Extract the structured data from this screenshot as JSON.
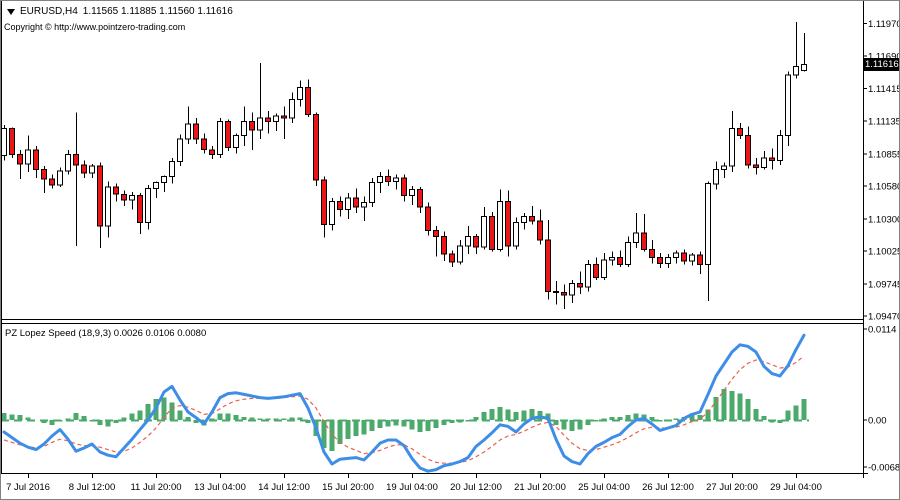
{
  "header": {
    "symbol": "EURUSD,H4",
    "ohlc": "1.11565 1.11885 1.11560 1.11616",
    "copyright": "Copyright © http://www.pointzero-trading.com"
  },
  "indicator": {
    "name": "PZ Lopez Speed (18,9,3)",
    "values_text": "0.0026 0.0106 0.0080",
    "histogram_value": 0.0026,
    "speed_value": 0.0106,
    "signal_value": 0.008
  },
  "colors": {
    "background": "#ffffff",
    "text": "#000000",
    "bull_body": "#ffffff",
    "bear_body": "#ed1515",
    "outline": "#000000",
    "speed_line": "#3e8de8",
    "signal_line": "#e8624a",
    "histogram": "#4ba96b",
    "zero_line": "#4ba96b",
    "price_box_bg": "#000000",
    "price_box_text": "#ffffff",
    "axis_line": "#000000"
  },
  "main_axis": {
    "current_price": "1.11616",
    "price_labels": [
      "1.11970",
      "1.11690",
      "1.11415",
      "1.11135",
      "1.10855",
      "1.10580",
      "1.10300",
      "1.10025",
      "1.09745",
      "1.09470"
    ]
  },
  "time_axis": {
    "labels": [
      "7 Jul 2016",
      "8 Jul 12:00",
      "11 Jul 20:00",
      "13 Jul 04:00",
      "14 Jul 12:00",
      "15 Jul 20:00",
      "19 Jul 04:00",
      "20 Jul 12:00",
      "21 Jul 20:00",
      "25 Jul 04:00",
      "26 Jul 12:00",
      "27 Jul 20:00",
      "29 Jul 04:00"
    ],
    "label_bars": [
      3,
      11,
      19,
      27,
      35,
      43,
      51,
      59,
      67,
      75,
      83,
      91,
      99
    ]
  },
  "chart_data": [
    {
      "type": "candlestick",
      "title": "EURUSD,H4",
      "symbol": "EURUSD",
      "timeframe": "H4",
      "current_bar": {
        "open": 1.11565,
        "high": 1.11885,
        "low": 1.1156,
        "close": 1.11616
      },
      "ylim": [
        1.09445,
        1.1216
      ],
      "grid": false,
      "bars": [
        [
          1.1084,
          1.111,
          1.108,
          1.1107
        ],
        [
          1.1107,
          1.1108,
          1.1082,
          1.1085
        ],
        [
          1.1085,
          1.1089,
          1.1064,
          1.1077
        ],
        [
          1.1077,
          1.1101,
          1.107,
          1.1089
        ],
        [
          1.1089,
          1.1092,
          1.1065,
          1.1072
        ],
        [
          1.1072,
          1.1075,
          1.1052,
          1.1064
        ],
        [
          1.1064,
          1.1068,
          1.1056,
          1.1059
        ],
        [
          1.1059,
          1.1074,
          1.1057,
          1.1071
        ],
        [
          1.1071,
          1.1089,
          1.1068,
          1.1085
        ],
        [
          1.1085,
          1.1121,
          1.1007,
          1.1076
        ],
        [
          1.1076,
          1.108,
          1.1065,
          1.1069
        ],
        [
          1.1069,
          1.1077,
          1.1065,
          1.1075
        ],
        [
          1.1075,
          1.1078,
          1.1005,
          1.1024
        ],
        [
          1.1024,
          1.1062,
          1.1014,
          1.1057
        ],
        [
          1.1057,
          1.106,
          1.1045,
          1.1051
        ],
        [
          1.1051,
          1.1054,
          1.1041,
          1.1046
        ],
        [
          1.1046,
          1.1053,
          1.1038,
          1.105
        ],
        [
          1.105,
          1.1052,
          1.1017,
          1.1027
        ],
        [
          1.1027,
          1.1059,
          1.1021,
          1.1056
        ],
        [
          1.1056,
          1.1062,
          1.1048,
          1.1061
        ],
        [
          1.1061,
          1.1067,
          1.1053,
          1.1066
        ],
        [
          1.1066,
          1.1082,
          1.106,
          1.1079
        ],
        [
          1.1079,
          1.1102,
          1.1075,
          1.1098
        ],
        [
          1.1098,
          1.1126,
          1.1094,
          1.1111
        ],
        [
          1.1111,
          1.1116,
          1.1094,
          1.1098
        ],
        [
          1.1098,
          1.1103,
          1.1086,
          1.1089
        ],
        [
          1.1089,
          1.1092,
          1.1081,
          1.1085
        ],
        [
          1.1085,
          1.1116,
          1.1082,
          1.1113
        ],
        [
          1.1113,
          1.1115,
          1.1088,
          1.1091
        ],
        [
          1.1091,
          1.1103,
          1.1086,
          1.1101
        ],
        [
          1.1101,
          1.1126,
          1.1092,
          1.1113
        ],
        [
          1.1113,
          1.1121,
          1.1089,
          1.1106
        ],
        [
          1.1106,
          1.1163,
          1.1098,
          1.1116
        ],
        [
          1.1116,
          1.1122,
          1.1103,
          1.1113
        ],
        [
          1.1113,
          1.112,
          1.1105,
          1.1118
        ],
        [
          1.1118,
          1.1126,
          1.1098,
          1.1116
        ],
        [
          1.1116,
          1.1138,
          1.1112,
          1.1132
        ],
        [
          1.1132,
          1.1148,
          1.1126,
          1.1142
        ],
        [
          1.1142,
          1.1149,
          1.1117,
          1.1119
        ],
        [
          1.1119,
          1.1121,
          1.1058,
          1.1063
        ],
        [
          1.1063,
          1.1066,
          1.1014,
          1.1025
        ],
        [
          1.1025,
          1.1048,
          1.102,
          1.1045
        ],
        [
          1.1045,
          1.1049,
          1.1032,
          1.1038
        ],
        [
          1.1038,
          1.1052,
          1.103,
          1.1048
        ],
        [
          1.1048,
          1.1056,
          1.1035,
          1.104
        ],
        [
          1.104,
          1.1049,
          1.1028,
          1.1044
        ],
        [
          1.1044,
          1.1065,
          1.104,
          1.1061
        ],
        [
          1.1061,
          1.107,
          1.1052,
          1.1066
        ],
        [
          1.1066,
          1.1072,
          1.1058,
          1.1062
        ],
        [
          1.1062,
          1.1068,
          1.1055,
          1.1065
        ],
        [
          1.1065,
          1.1068,
          1.1045,
          1.105
        ],
        [
          1.105,
          1.1058,
          1.1042,
          1.1055
        ],
        [
          1.1055,
          1.1057,
          1.1035,
          1.104
        ],
        [
          1.104,
          1.1044,
          1.1016,
          1.102
        ],
        [
          1.102,
          1.1024,
          1.0998,
          1.1015
        ],
        [
          1.1015,
          1.1019,
          1.0994,
          1.1
        ],
        [
          1.1,
          1.1003,
          1.0989,
          1.0993
        ],
        [
          1.0993,
          1.1012,
          1.0991,
          1.1007
        ],
        [
          1.1007,
          1.1024,
          1.1,
          1.1015
        ],
        [
          1.1015,
          1.1017,
          1.1,
          1.1006
        ],
        [
          1.1006,
          1.104,
          1.1004,
          1.1032
        ],
        [
          1.1032,
          1.1036,
          1.1002,
          1.1004
        ],
        [
          1.1004,
          1.1055,
          1.1002,
          1.1045
        ],
        [
          1.1045,
          1.1054,
          1.0998,
          1.1007
        ],
        [
          1.1007,
          1.1031,
          1.1004,
          1.1027
        ],
        [
          1.1027,
          1.1035,
          1.1021,
          1.1032
        ],
        [
          1.1032,
          1.1041,
          1.1025,
          1.1028
        ],
        [
          1.1028,
          1.1038,
          1.1008,
          1.1012
        ],
        [
          1.1012,
          1.1029,
          1.0961,
          1.0968
        ],
        [
          1.0968,
          1.0977,
          1.0957,
          1.0967
        ],
        [
          1.0967,
          1.0974,
          1.0953,
          1.0965
        ],
        [
          1.0965,
          1.0978,
          1.0958,
          1.0975
        ],
        [
          1.0975,
          1.0985,
          1.0966,
          1.0972
        ],
        [
          1.0972,
          1.0995,
          1.0968,
          1.0991
        ],
        [
          1.0991,
          1.0997,
          1.0978,
          1.098
        ],
        [
          1.098,
          1.1001,
          1.0978,
          1.0995
        ],
        [
          1.0995,
          1.1002,
          1.099,
          1.0997
        ],
        [
          1.0997,
          1.1003,
          1.0989,
          1.0991
        ],
        [
          1.0991,
          1.1015,
          1.0989,
          1.101
        ],
        [
          1.101,
          1.1035,
          1.1005,
          1.1018
        ],
        [
          1.1018,
          1.1034,
          1.1002,
          1.1004
        ],
        [
          1.1004,
          1.1012,
          1.0992,
          1.0997
        ],
        [
          1.0997,
          1.1001,
          1.0988,
          1.0992
        ],
        [
          1.0992,
          1.1,
          1.0988,
          1.0997
        ],
        [
          1.0997,
          1.1003,
          1.0992,
          1.1001
        ],
        [
          1.1001,
          1.1004,
          1.0991,
          1.0994
        ],
        [
          1.0994,
          1.1001,
          1.099,
          1.0999
        ],
        [
          1.0999,
          1.1002,
          1.0983,
          1.0991
        ],
        [
          1.0991,
          1.1062,
          1.096,
          1.106
        ],
        [
          1.106,
          1.1079,
          1.1055,
          1.1072
        ],
        [
          1.1072,
          1.1078,
          1.1065,
          1.1075
        ],
        [
          1.1075,
          1.1122,
          1.107,
          1.1107
        ],
        [
          1.1107,
          1.1112,
          1.1098,
          1.1101
        ],
        [
          1.1101,
          1.1109,
          1.1073,
          1.1076
        ],
        [
          1.1076,
          1.1082,
          1.1068,
          1.1074
        ],
        [
          1.1074,
          1.1088,
          1.1072,
          1.1082
        ],
        [
          1.1082,
          1.109,
          1.1072,
          1.108
        ],
        [
          1.108,
          1.1106,
          1.1076,
          1.1101
        ],
        [
          1.1101,
          1.1156,
          1.1092,
          1.1153
        ],
        [
          1.1153,
          1.1198,
          1.115,
          1.116
        ],
        [
          1.11565,
          1.11885,
          1.1156,
          1.11616
        ]
      ]
    },
    {
      "type": "line+histogram",
      "title": "PZ Lopez Speed (18,9,3)",
      "ylim": [
        -0.006625,
        0.012125
      ],
      "grid": false,
      "y_tick_labels": [
        "0.0114",
        "0.00",
        "-0.0068"
      ],
      "y_tick_values": [
        0.0114,
        0,
        -0.0068
      ],
      "series": [
        {
          "name": "speed",
          "type": "line",
          "values": [
            -0.0015,
            -0.0022,
            -0.0029,
            -0.0034,
            -0.0037,
            -0.003,
            -0.002,
            -0.0012,
            -0.0024,
            -0.0039,
            -0.0035,
            -0.003,
            -0.004,
            -0.0044,
            -0.0046,
            -0.0035,
            -0.0024,
            -0.0012,
            0.0,
            0.0015,
            0.0035,
            0.0042,
            0.0025,
            0.001,
            0.0003,
            -0.0005,
            0.001,
            0.0028,
            0.0033,
            0.0034,
            0.0032,
            0.003,
            0.0028,
            0.0027,
            0.0028,
            0.0029,
            0.0031,
            0.0033,
            0.0015,
            -0.001,
            -0.004,
            -0.0055,
            -0.0049,
            -0.0048,
            -0.0047,
            -0.005,
            -0.004,
            -0.0029,
            -0.0025,
            -0.0025,
            -0.0032,
            -0.0048,
            -0.006,
            -0.0064,
            -0.0062,
            -0.0057,
            -0.0055,
            -0.0052,
            -0.0047,
            -0.0033,
            -0.0025,
            -0.0016,
            -0.0006,
            -0.0008,
            -0.0015,
            -0.0005,
            0.0002,
            0.0004,
            0.0002,
            -0.0024,
            -0.0045,
            -0.0052,
            -0.0055,
            -0.0042,
            -0.0033,
            -0.0028,
            -0.0022,
            -0.0018,
            -0.0008,
            0.0,
            0.0002,
            -0.0005,
            -0.0013,
            -0.001,
            -0.0007,
            0.0002,
            0.0007,
            0.001,
            0.0032,
            0.0055,
            0.007,
            0.0085,
            0.0094,
            0.0092,
            0.0085,
            0.0067,
            0.0058,
            0.0055,
            0.0068,
            0.0088,
            0.0106
          ]
        },
        {
          "name": "signal",
          "type": "dashed-line",
          "values": [
            -0.0025,
            -0.0028,
            -0.0031,
            -0.0033,
            -0.0035,
            -0.0033,
            -0.0028,
            -0.0024,
            -0.0026,
            -0.003,
            -0.0032,
            -0.0032,
            -0.0034,
            -0.0037,
            -0.004,
            -0.0039,
            -0.0035,
            -0.0028,
            -0.002,
            -0.001,
            0.0003,
            0.0015,
            0.0018,
            0.0016,
            0.0012,
            0.0007,
            0.0008,
            0.0014,
            0.002,
            0.0024,
            0.0026,
            0.0027,
            0.0027,
            0.0027,
            0.0027,
            0.0028,
            0.0029,
            0.003,
            0.0026,
            0.0015,
            -0.0002,
            -0.0018,
            -0.0028,
            -0.0034,
            -0.0038,
            -0.0042,
            -0.0041,
            -0.0038,
            -0.0034,
            -0.0031,
            -0.0031,
            -0.0036,
            -0.0043,
            -0.0049,
            -0.0053,
            -0.0054,
            -0.0054,
            -0.0053,
            -0.0051,
            -0.0046,
            -0.004,
            -0.0033,
            -0.0025,
            -0.002,
            -0.0018,
            -0.0014,
            -0.0009,
            -0.0005,
            -0.0003,
            -0.0008,
            -0.0019,
            -0.0029,
            -0.0036,
            -0.0038,
            -0.0037,
            -0.0034,
            -0.0031,
            -0.0027,
            -0.0022,
            -0.0016,
            -0.0011,
            -0.0009,
            -0.001,
            -0.001,
            -0.0009,
            -0.0006,
            -0.0002,
            0.0001,
            0.001,
            0.0023,
            0.0037,
            0.0051,
            0.0063,
            0.0071,
            0.0075,
            0.0073,
            0.0069,
            0.0065,
            0.0066,
            0.0072,
            0.008
          ]
        },
        {
          "name": "histogram",
          "type": "bar",
          "values": [
            0.0009,
            0.0007,
            0.0006,
            0.0003,
            0.0,
            -0.0004,
            -0.0006,
            -0.0002,
            0.0002,
            0.0009,
            0.0005,
            -0.0002,
            -0.0006,
            -0.0008,
            -0.0004,
            0.0003,
            0.0008,
            0.0012,
            0.002,
            0.0026,
            0.0028,
            0.0022,
            0.0012,
            0.0004,
            -0.0004,
            -0.0007,
            0.0002,
            0.0008,
            0.0008,
            0.0006,
            0.0004,
            0.0003,
            0.0002,
            0.0002,
            0.0002,
            0.0002,
            0.0003,
            0.0003,
            -0.0004,
            -0.002,
            -0.0035,
            -0.0039,
            -0.003,
            -0.0024,
            -0.002,
            -0.0018,
            -0.0014,
            -0.001,
            -0.0008,
            -0.0007,
            -0.0008,
            -0.0012,
            -0.0015,
            -0.0014,
            -0.001,
            -0.0006,
            -0.0004,
            -0.0003,
            -0.0002,
            0.0004,
            0.001,
            0.0014,
            0.0016,
            0.0013,
            0.001,
            0.0012,
            0.0014,
            0.0011,
            0.0008,
            -0.0006,
            -0.0012,
            -0.0014,
            -0.0012,
            -0.0006,
            -0.0002,
            0.0002,
            0.0004,
            0.0004,
            0.0006,
            0.0008,
            0.0007,
            0.0004,
            -0.0002,
            -0.0002,
            0.0002,
            0.0004,
            0.0006,
            0.0006,
            0.0013,
            0.0029,
            0.0039,
            0.0036,
            0.0033,
            0.0026,
            0.0014,
            0.0005,
            -0.0003,
            -0.0004,
            0.0012,
            0.0018,
            0.0026
          ]
        }
      ]
    }
  ]
}
